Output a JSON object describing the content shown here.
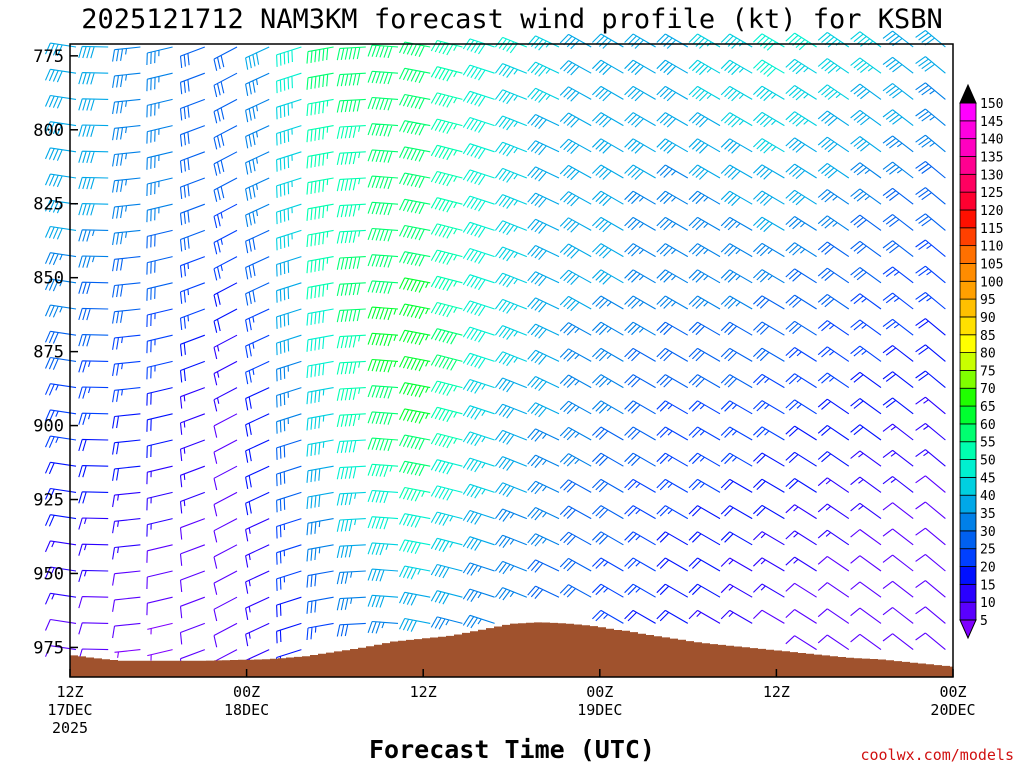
{
  "chart_data": {
    "type": "wind-barb-profile",
    "title": "2025121712 NAM3KM forecast wind profile (kt) for KSBN",
    "xlabel": "Forecast Time (UTC)",
    "ylabel": "",
    "units": "kt",
    "credit": "coolwx.com/models",
    "y_axis": {
      "reversed": true,
      "range": [
        771,
        985
      ],
      "ticks": [
        775,
        800,
        825,
        850,
        875,
        900,
        925,
        950,
        975
      ]
    },
    "x_axis": {
      "range_hours": [
        0,
        60
      ],
      "ticks": [
        {
          "hour": 0,
          "lines": [
            "12Z",
            "17DEC",
            "2025"
          ]
        },
        {
          "hour": 12,
          "lines": [
            "00Z",
            "18DEC"
          ]
        },
        {
          "hour": 24,
          "lines": [
            "12Z"
          ]
        },
        {
          "hour": 36,
          "lines": [
            "00Z",
            "19DEC"
          ]
        },
        {
          "hour": 48,
          "lines": [
            "12Z"
          ]
        },
        {
          "hour": 60,
          "lines": [
            "00Z",
            "20DEC"
          ]
        }
      ]
    },
    "colorbar": {
      "values": [
        5,
        10,
        15,
        20,
        25,
        30,
        35,
        40,
        45,
        50,
        55,
        60,
        65,
        70,
        75,
        80,
        85,
        90,
        95,
        100,
        105,
        110,
        115,
        120,
        125,
        130,
        135,
        140,
        145,
        150
      ],
      "colors": [
        "#7f00ff",
        "#5a00ff",
        "#2a00ff",
        "#0010ff",
        "#0040ff",
        "#0060f0",
        "#0080e8",
        "#00a8e8",
        "#00d0e0",
        "#00f0d0",
        "#00ffb0",
        "#00ff70",
        "#00ff30",
        "#20ff00",
        "#80ff00",
        "#c8ff00",
        "#ffff00",
        "#ffe000",
        "#ffc000",
        "#ffa000",
        "#ff8c00",
        "#ff7000",
        "#ff4000",
        "#ff1000",
        "#ff0030",
        "#ff0060",
        "#ff0090",
        "#ff00c0",
        "#ff00e0",
        "#ff00ff"
      ]
    },
    "wind_speed_kt": {
      "hours": [
        0,
        6,
        12,
        18,
        24,
        30,
        36,
        42,
        48,
        54,
        60
      ],
      "levels": [
        775,
        800,
        825,
        850,
        875,
        900,
        925,
        950,
        975
      ],
      "values": [
        [
          40,
          35,
          30,
          60,
          60,
          50,
          40,
          40,
          50,
          45,
          40
        ],
        [
          40,
          35,
          30,
          55,
          60,
          45,
          40,
          40,
          45,
          40,
          35
        ],
        [
          40,
          35,
          25,
          55,
          60,
          45,
          40,
          35,
          40,
          35,
          30
        ],
        [
          35,
          30,
          20,
          55,
          65,
          45,
          40,
          35,
          35,
          30,
          25
        ],
        [
          30,
          25,
          15,
          50,
          70,
          45,
          35,
          30,
          30,
          25,
          20
        ],
        [
          25,
          20,
          10,
          45,
          65,
          40,
          35,
          25,
          25,
          20,
          15
        ],
        [
          20,
          15,
          10,
          40,
          55,
          40,
          30,
          25,
          20,
          15,
          10
        ],
        [
          15,
          10,
          10,
          30,
          45,
          35,
          30,
          20,
          15,
          10,
          10
        ],
        [
          10,
          5,
          10,
          25,
          35,
          30,
          25,
          20,
          10,
          10,
          10
        ]
      ]
    },
    "wind_direction_from_deg": {
      "hours": [
        0,
        12,
        18,
        24,
        36,
        48,
        60
      ],
      "values": [
        280,
        240,
        260,
        280,
        300,
        300,
        310
      ]
    },
    "terrain": {
      "color": "#a0522d",
      "hours": [
        0,
        1.5,
        3.5,
        9,
        13.5,
        16,
        18,
        20,
        22,
        24,
        26,
        28,
        30,
        32,
        34,
        36,
        37,
        38,
        39,
        41,
        43,
        45,
        47,
        49,
        51,
        53,
        55,
        57,
        59,
        60
      ],
      "surface_hPa": [
        977.5,
        978.5,
        979.5,
        979.5,
        979,
        978,
        976.5,
        975,
        973,
        972,
        971,
        969,
        967,
        966.5,
        967,
        968,
        969,
        969.5,
        970.5,
        972,
        973.5,
        974.5,
        975.5,
        976.5,
        977.5,
        978.5,
        979,
        980,
        981,
        981.5
      ]
    }
  }
}
